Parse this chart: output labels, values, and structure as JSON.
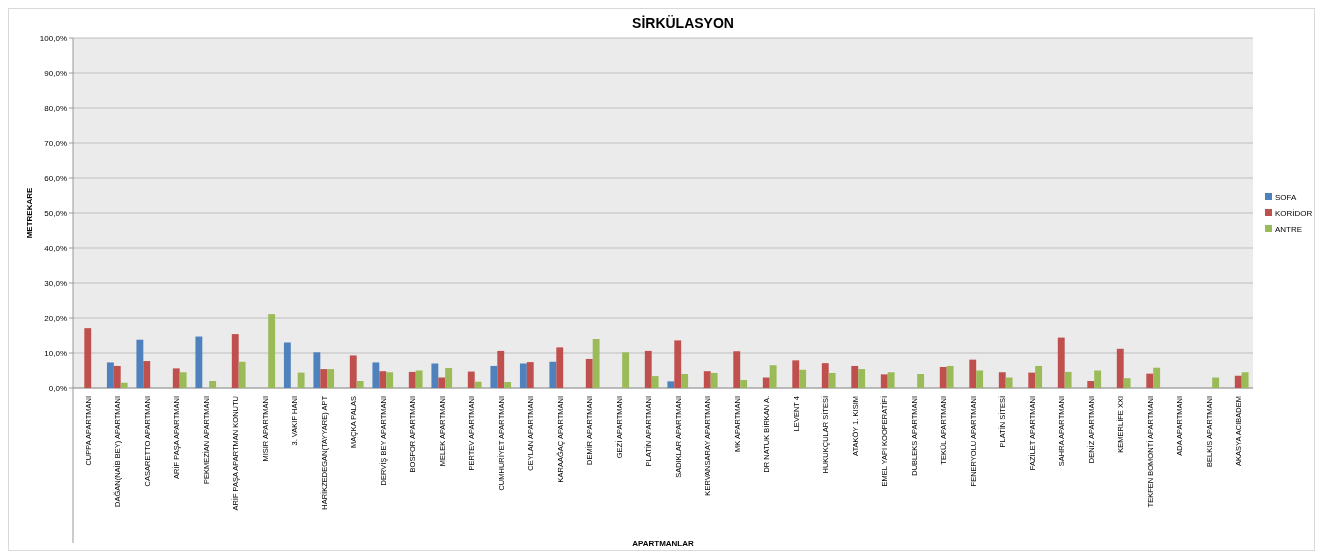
{
  "chart_data": {
    "type": "bar",
    "title": "SİRKÜLASYON",
    "xlabel": "APARTMANLAR",
    "ylabel": "METREKARE",
    "categories": [
      "CUPPA APARTMANI",
      "DAĞAN(NAİB BEY) APARTMANI",
      "CASARETTO APARTMANI",
      "ARİF PAŞA APARTMANI",
      "PEKMEZİAN APARTMANI",
      "ARİF PAŞA APARTMAN KONUTU",
      "MISIR APARTMANI",
      "3. VAKIF HANI",
      "HARİKZEDEGAN(TAYYARE) APT",
      "MAÇKA PALAS",
      "DERVİŞ BEY APARTMANI",
      "BOSFOR APARTMANI",
      "MELEK APARTMANI",
      "PERTEV APARTMANI",
      "CUMHURİYET APARTMANI",
      "CEYLAN APARTMANI",
      "KARAAĞAÇ APARTMANI",
      "DEMİR APARTMANI",
      "GEZİ APARTMANI",
      "PLATİN APARTMANI",
      "SADIKLAR APARTMANI",
      "KERVANSARAY APARTMANI",
      "MK APARTMANI",
      "DR NATUK BİRKAN A.",
      "LEVENT 4",
      "HUKUKÇULAR SİTESİ",
      "ATAKÖY 1. KISIM",
      "EMEL YAPI KOOPERATİFİ",
      "DUBLEKS APARTMANI",
      "TEKÜL APARTMANI",
      "FENERYOLU APARTMANI",
      "PLATİN SİTESİ",
      "FAZİLET APARTMANI",
      "SAHRA APARTMANI",
      "DENİZ APARTMANI",
      "KEMERLİFE XXI",
      "TEKFEN BOMONTİ APARTMANI",
      "ADA APARTMANI",
      "BELKIS APARTMANI",
      "AKASYA ACIBADEM"
    ],
    "series": [
      {
        "name": "SOFA",
        "color": "#4f81bd",
        "values": [
          null,
          7.3,
          13.8,
          null,
          14.7,
          null,
          null,
          13.0,
          10.2,
          null,
          7.3,
          null,
          7.0,
          null,
          6.3,
          7.0,
          7.5,
          null,
          null,
          null,
          1.9,
          null,
          null,
          null,
          null,
          null,
          null,
          null,
          null,
          null,
          null,
          null,
          null,
          null,
          null,
          null,
          null,
          null,
          null,
          null
        ]
      },
      {
        "name": "KORİDOR",
        "color": "#c0504d",
        "values": [
          17.1,
          6.3,
          7.7,
          5.6,
          null,
          15.4,
          null,
          null,
          5.4,
          9.3,
          4.8,
          4.6,
          3.0,
          4.7,
          10.6,
          7.4,
          11.6,
          8.3,
          null,
          10.6,
          13.6,
          4.8,
          10.5,
          3.0,
          7.9,
          7.1,
          6.3,
          3.9,
          null,
          6.0,
          8.1,
          4.5,
          4.4,
          14.4,
          2.0,
          11.2,
          4.1,
          null,
          null,
          3.5
        ]
      },
      {
        "name": "ANTRE",
        "color": "#9bbb59",
        "values": [
          null,
          1.5,
          null,
          4.5,
          2.0,
          7.5,
          21.1,
          4.4,
          5.4,
          2.0,
          4.5,
          5.0,
          5.7,
          1.8,
          1.7,
          null,
          null,
          14.0,
          10.2,
          3.4,
          4.0,
          4.3,
          2.3,
          6.5,
          5.2,
          4.3,
          5.4,
          4.5,
          4.0,
          6.3,
          5.0,
          3.0,
          6.3,
          4.6,
          5.0,
          2.8,
          5.8,
          null,
          3.0,
          4.5
        ]
      }
    ],
    "ylim": [
      0,
      100
    ],
    "yticks": [
      {
        "value": 0,
        "label": "0,0%"
      },
      {
        "value": 10,
        "label": "10,0%"
      },
      {
        "value": 20,
        "label": "20,0%"
      },
      {
        "value": 30,
        "label": "30,0%"
      },
      {
        "value": 40,
        "label": "40,0%"
      },
      {
        "value": 50,
        "label": "50,0%"
      },
      {
        "value": 60,
        "label": "60,0%"
      },
      {
        "value": 70,
        "label": "70,0%"
      },
      {
        "value": 80,
        "label": "80,0%"
      },
      {
        "value": 90,
        "label": "90,0%"
      },
      {
        "value": 100,
        "label": "100,0%"
      }
    ],
    "grid": "y",
    "legend": "right"
  }
}
